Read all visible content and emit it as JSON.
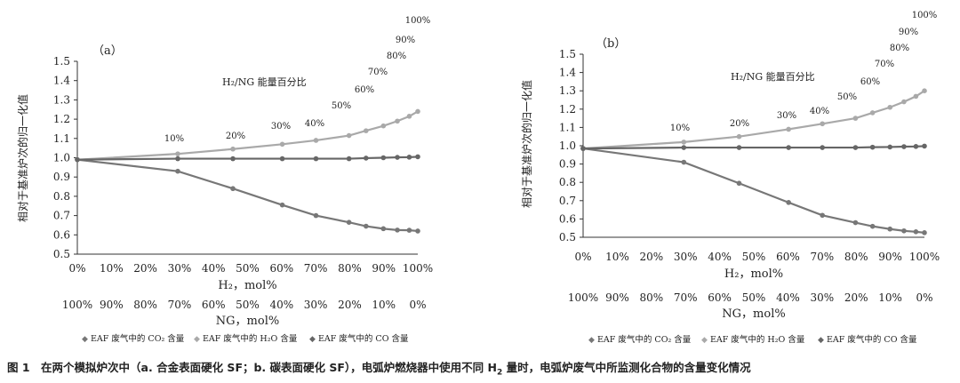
{
  "chart_data": [
    {
      "type": "line",
      "panel_label": "（a）",
      "inner_title": "H₂/NG 能量百分比",
      "ylabel": "相对于基准炉次的归一化值",
      "xlabel_h2": "H₂，mol%",
      "xlabel_ng": "NG，mol%",
      "ylim": [
        0.5,
        1.5
      ],
      "yticks": [
        "0.5",
        "0.6",
        "0.7",
        "0.8",
        "0.9",
        "1.0",
        "1.1",
        "1.2",
        "1.3",
        "1.4",
        "1.5"
      ],
      "xticks_h2": [
        "0%",
        "10%",
        "20%",
        "30%",
        "40%",
        "50%",
        "60%",
        "70%",
        "80%",
        "90%",
        "100%"
      ],
      "xticks_ng": [
        "100%",
        "90%",
        "80%",
        "70%",
        "60%",
        "50%",
        "40%",
        "30%",
        "20%",
        "10%",
        "0%"
      ],
      "x": [
        0,
        29.5,
        45.7,
        60.2,
        70.1,
        79.8,
        84.8,
        89.9,
        94.0,
        97.5,
        100
      ],
      "series": [
        {
          "name": "EAF 废气中的 CO₂ 含量",
          "color": "#777777",
          "marker": "triangle",
          "values": [
            0.99,
            0.93,
            0.84,
            0.755,
            0.7,
            0.665,
            0.645,
            0.632,
            0.625,
            0.624,
            0.62
          ]
        },
        {
          "name": "EAF 废气中的 H₂O 含量",
          "color": "#a9a9a9",
          "marker": "diamond",
          "values": [
            0.99,
            1.02,
            1.045,
            1.07,
            1.09,
            1.115,
            1.14,
            1.165,
            1.19,
            1.215,
            1.24
          ]
        },
        {
          "name": "EAF 废气中的 CO 含量",
          "color": "#666666",
          "marker": "circle",
          "values": [
            0.99,
            0.995,
            0.995,
            0.995,
            0.995,
            0.995,
            0.998,
            1.0,
            1.002,
            1.003,
            1.005
          ]
        }
      ],
      "annotations": [
        "10%",
        "20%",
        "30%",
        "40%",
        "50%",
        "60%",
        "70%",
        "80%",
        "90%",
        "100%"
      ]
    },
    {
      "type": "line",
      "panel_label": "（b）",
      "inner_title": "H₂/NG 能量百分比",
      "ylabel": "相对于基准炉次的归一化值",
      "xlabel_h2": "H₂，mol%",
      "xlabel_ng": "NG，mol%",
      "ylim": [
        0.5,
        1.5
      ],
      "yticks": [
        "0.5",
        "0.6",
        "0.7",
        "0.8",
        "0.9",
        "1.0",
        "1.1",
        "1.2",
        "1.3",
        "1.4",
        "1.5"
      ],
      "xticks_h2": [
        "0%",
        "10%",
        "20%",
        "30%",
        "40%",
        "50%",
        "60%",
        "70%",
        "80%",
        "90%",
        "100%"
      ],
      "xticks_ng": [
        "100%",
        "90%",
        "80%",
        "70%",
        "60%",
        "50%",
        "40%",
        "30%",
        "20%",
        "10%",
        "0%"
      ],
      "x": [
        0,
        29.5,
        45.7,
        60.2,
        70.1,
        79.8,
        84.8,
        89.9,
        94.0,
        97.5,
        100
      ],
      "series": [
        {
          "name": "EAF 废气中的 CO₂ 含量",
          "color": "#777777",
          "marker": "triangle",
          "values": [
            0.985,
            0.91,
            0.795,
            0.69,
            0.62,
            0.58,
            0.56,
            0.545,
            0.535,
            0.53,
            0.525
          ]
        },
        {
          "name": "EAF 废气中的 H₂O 含量",
          "color": "#a9a9a9",
          "marker": "diamond",
          "values": [
            0.985,
            1.02,
            1.05,
            1.09,
            1.12,
            1.15,
            1.18,
            1.21,
            1.24,
            1.27,
            1.3
          ]
        },
        {
          "name": "EAF 废气中的 CO 含量",
          "color": "#666666",
          "marker": "circle",
          "values": [
            0.985,
            0.99,
            0.99,
            0.99,
            0.99,
            0.99,
            0.992,
            0.993,
            0.995,
            0.996,
            0.998
          ]
        }
      ],
      "annotations": [
        "10%",
        "20%",
        "30%",
        "40%",
        "50%",
        "60%",
        "70%",
        "80%",
        "90%",
        "100%"
      ]
    }
  ],
  "caption": {
    "prefix": "图 1　在两个模拟炉次中（a. 合金表面硬化 SF；b. 碳表面硬化 SF），电弧炉燃烧器中使用不同 H",
    "sub": "2",
    "suffix": " 量时，电弧炉废气中所监测化合物的含量变化情况"
  }
}
